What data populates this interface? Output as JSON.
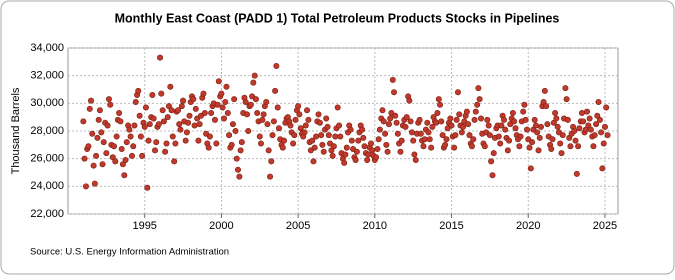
{
  "chart_data": {
    "type": "scatter",
    "title": "Monthly East Coast (PADD 1) Total Petroleum Products Stocks in Pipelines",
    "y_label": "Thousand Barrels",
    "source": "Source: U.S. Energy Information Administration",
    "color": "#c0392b",
    "grid": true,
    "xlim": [
      1990,
      2025.85
    ],
    "xticks": [
      1995,
      2000,
      2005,
      2010,
      2015,
      2020,
      2025
    ],
    "ylim": [
      22000,
      34000
    ],
    "yticks": [
      {
        "value": 22000,
        "label": "22,000"
      },
      {
        "value": 24000,
        "label": "24,000"
      },
      {
        "value": 26000,
        "label": "26,000"
      },
      {
        "value": 28000,
        "label": "28,000"
      },
      {
        "value": 30000,
        "label": "30,000"
      },
      {
        "value": 32000,
        "label": "32,000"
      },
      {
        "value": 34000,
        "label": "34,000"
      }
    ],
    "x": [
      1991,
      1991.08,
      1991.17,
      1991.25,
      1991.33,
      1991.42,
      1991.5,
      1991.58,
      1991.67,
      1991.75,
      1991.83,
      1991.92,
      1992,
      1992.08,
      1992.17,
      1992.25,
      1992.33,
      1992.42,
      1992.5,
      1992.58,
      1992.67,
      1992.75,
      1992.83,
      1992.92,
      1993,
      1993.08,
      1993.17,
      1993.25,
      1993.33,
      1993.42,
      1993.5,
      1993.58,
      1993.67,
      1993.75,
      1993.83,
      1993.92,
      1994,
      1994.08,
      1994.17,
      1994.25,
      1994.33,
      1994.42,
      1994.5,
      1994.58,
      1994.67,
      1994.75,
      1994.83,
      1994.92,
      1995,
      1995.08,
      1995.17,
      1995.25,
      1995.33,
      1995.42,
      1995.5,
      1995.58,
      1995.67,
      1995.75,
      1995.83,
      1995.92,
      1996,
      1996.08,
      1996.17,
      1996.25,
      1996.33,
      1996.42,
      1996.5,
      1996.58,
      1996.67,
      1996.75,
      1996.83,
      1996.92,
      1997,
      1997.08,
      1997.17,
      1997.25,
      1997.33,
      1997.42,
      1997.5,
      1997.58,
      1997.67,
      1997.75,
      1997.83,
      1997.92,
      1998,
      1998.08,
      1998.17,
      1998.25,
      1998.33,
      1998.42,
      1998.5,
      1998.58,
      1998.67,
      1998.75,
      1998.83,
      1998.92,
      1999,
      1999.08,
      1999.17,
      1999.25,
      1999.33,
      1999.42,
      1999.5,
      1999.58,
      1999.67,
      1999.75,
      1999.83,
      1999.92,
      2000,
      2000.08,
      2000.17,
      2000.25,
      2000.33,
      2000.42,
      2000.5,
      2000.58,
      2000.67,
      2000.75,
      2000.83,
      2000.92,
      2001,
      2001.08,
      2001.17,
      2001.25,
      2001.33,
      2001.42,
      2001.5,
      2001.58,
      2001.67,
      2001.75,
      2001.83,
      2001.92,
      2002,
      2002.08,
      2002.17,
      2002.25,
      2002.33,
      2002.42,
      2002.5,
      2002.58,
      2002.67,
      2002.75,
      2002.83,
      2002.92,
      2003,
      2003.08,
      2003.17,
      2003.25,
      2003.33,
      2003.42,
      2003.5,
      2003.58,
      2003.67,
      2003.75,
      2003.83,
      2003.92,
      2004,
      2004.08,
      2004.17,
      2004.25,
      2004.33,
      2004.42,
      2004.5,
      2004.58,
      2004.67,
      2004.75,
      2004.83,
      2004.92,
      2005,
      2005.08,
      2005.17,
      2005.25,
      2005.33,
      2005.42,
      2005.5,
      2005.58,
      2005.67,
      2005.75,
      2005.83,
      2005.92,
      2006,
      2006.08,
      2006.17,
      2006.25,
      2006.33,
      2006.42,
      2006.5,
      2006.58,
      2006.67,
      2006.75,
      2006.83,
      2006.92,
      2007,
      2007.08,
      2007.17,
      2007.25,
      2007.33,
      2007.42,
      2007.5,
      2007.58,
      2007.67,
      2007.75,
      2007.83,
      2007.92,
      2008,
      2008.08,
      2008.17,
      2008.25,
      2008.33,
      2008.42,
      2008.5,
      2008.58,
      2008.67,
      2008.75,
      2008.83,
      2008.92,
      2009,
      2009.08,
      2009.17,
      2009.25,
      2009.33,
      2009.42,
      2009.5,
      2009.58,
      2009.67,
      2009.75,
      2009.83,
      2009.92,
      2010,
      2010.08,
      2010.17,
      2010.25,
      2010.33,
      2010.42,
      2010.5,
      2010.58,
      2010.67,
      2010.75,
      2010.83,
      2010.92,
      2011,
      2011.08,
      2011.17,
      2011.25,
      2011.33,
      2011.42,
      2011.5,
      2011.58,
      2011.67,
      2011.75,
      2011.83,
      2011.92,
      2012,
      2012.08,
      2012.17,
      2012.25,
      2012.33,
      2012.42,
      2012.5,
      2012.58,
      2012.67,
      2012.75,
      2012.83,
      2012.92,
      2013,
      2013.08,
      2013.17,
      2013.25,
      2013.33,
      2013.42,
      2013.5,
      2013.58,
      2013.67,
      2013.75,
      2013.83,
      2013.92,
      2014,
      2014.08,
      2014.17,
      2014.25,
      2014.33,
      2014.42,
      2014.5,
      2014.58,
      2014.67,
      2014.75,
      2014.83,
      2014.92,
      2015,
      2015.08,
      2015.17,
      2015.25,
      2015.33,
      2015.42,
      2015.5,
      2015.58,
      2015.67,
      2015.75,
      2015.83,
      2015.92,
      2016,
      2016.08,
      2016.17,
      2016.25,
      2016.33,
      2016.42,
      2016.5,
      2016.58,
      2016.67,
      2016.75,
      2016.83,
      2016.92,
      2017,
      2017.08,
      2017.17,
      2017.25,
      2017.33,
      2017.42,
      2017.5,
      2017.58,
      2017.67,
      2017.75,
      2017.83,
      2017.92,
      2018,
      2018.08,
      2018.17,
      2018.25,
      2018.33,
      2018.42,
      2018.5,
      2018.58,
      2018.67,
      2018.75,
      2018.83,
      2018.92,
      2019,
      2019.08,
      2019.17,
      2019.25,
      2019.33,
      2019.42,
      2019.5,
      2019.58,
      2019.67,
      2019.75,
      2019.83,
      2019.92,
      2020,
      2020.08,
      2020.17,
      2020.25,
      2020.33,
      2020.42,
      2020.5,
      2020.58,
      2020.67,
      2020.75,
      2020.83,
      2020.92,
      2021,
      2021.08,
      2021.17,
      2021.25,
      2021.33,
      2021.42,
      2021.5,
      2021.58,
      2021.67,
      2021.75,
      2021.83,
      2021.92,
      2022,
      2022.08,
      2022.17,
      2022.25,
      2022.33,
      2022.42,
      2022.5,
      2022.58,
      2022.67,
      2022.75,
      2022.83,
      2022.92,
      2023,
      2023.08,
      2023.17,
      2023.25,
      2023.33,
      2023.42,
      2023.5,
      2023.58,
      2023.67,
      2023.75,
      2023.83,
      2023.92,
      2024,
      2024.08,
      2024.17,
      2024.25,
      2024.33,
      2024.42,
      2024.5,
      2024.58,
      2024.67,
      2024.75,
      2024.83,
      2024.92,
      2025,
      2025.08,
      2025.17
    ],
    "values": [
      28700,
      26000,
      24000,
      26700,
      26900,
      29600,
      30200,
      27800,
      25500,
      24200,
      26200,
      27500,
      28800,
      29500,
      27900,
      25600,
      27200,
      28600,
      26400,
      28400,
      30300,
      29900,
      27000,
      26100,
      26900,
      25800,
      27600,
      28800,
      29300,
      28700,
      26700,
      25600,
      24800,
      25900,
      27200,
      28400,
      28100,
      27600,
      26200,
      26900,
      28400,
      30100,
      30600,
      30900,
      29100,
      27600,
      26200,
      28600,
      28300,
      29700,
      23900,
      27300,
      28500,
      29000,
      30600,
      28900,
      26600,
      27200,
      28300,
      28500,
      33300,
      30700,
      29500,
      28700,
      26500,
      27100,
      29000,
      29800,
      31200,
      29500,
      27600,
      25800,
      27100,
      29400,
      29500,
      28500,
      28100,
      29800,
      30200,
      28700,
      27300,
      27900,
      28600,
      29100,
      30100,
      30500,
      30300,
      28400,
      29600,
      28900,
      27300,
      28500,
      29100,
      30400,
      30700,
      29300,
      27800,
      27100,
      26800,
      27600,
      29300,
      29800,
      30000,
      28800,
      27100,
      29900,
      31600,
      30500,
      30700,
      29700,
      28900,
      30100,
      31200,
      29300,
      27700,
      26800,
      27000,
      28500,
      30300,
      28000,
      26000,
      25200,
      24700,
      26600,
      27200,
      29300,
      30400,
      30100,
      29200,
      28000,
      29800,
      29900,
      30500,
      31500,
      32000,
      30300,
      29300,
      28700,
      27600,
      27100,
      28800,
      29200,
      29800,
      30100,
      28500,
      26600,
      24700,
      25800,
      27700,
      28700,
      30900,
      32700,
      29700,
      28200,
      27400,
      27000,
      26800,
      27300,
      28600,
      28900,
      29000,
      28700,
      28400,
      27900,
      27100,
      27700,
      28800,
      29500,
      29800,
      29200,
      28200,
      27800,
      27600,
      27900,
      28400,
      29500,
      28800,
      27200,
      26600,
      27300,
      25800,
      26800,
      27600,
      28700,
      29200,
      28600,
      27700,
      27000,
      26500,
      28100,
      28900,
      28300,
      27700,
      27100,
      26600,
      26200,
      26900,
      27600,
      28200,
      29700,
      28400,
      27600,
      26400,
      26000,
      25700,
      26300,
      26800,
      27900,
      28400,
      28100,
      27300,
      26700,
      26100,
      25900,
      26500,
      27300,
      27900,
      28400,
      28100,
      27500,
      26900,
      26400,
      25900,
      26300,
      26800,
      27100,
      26600,
      26200,
      25900,
      26100,
      26700,
      27400,
      28100,
      28900,
      29500,
      28700,
      27800,
      27000,
      26500,
      28500,
      28900,
      29300,
      31700,
      30800,
      29100,
      28600,
      27800,
      27100,
      26500,
      27300,
      28400,
      28800,
      28300,
      29000,
      30500,
      30200,
      28700,
      27900,
      27300,
      26300,
      25900,
      27800,
      28600,
      28800,
      27800,
      27300,
      26900,
      27400,
      28100,
      28600,
      27900,
      27400,
      26800,
      28300,
      29000,
      28700,
      28600,
      29300,
      30300,
      29900,
      28700,
      27700,
      26800,
      27000,
      27400,
      28200,
      28600,
      28900,
      28400,
      27600,
      26800,
      27700,
      28800,
      30800,
      29200,
      28400,
      27900,
      28300,
      28700,
      29100,
      29400,
      28500,
      27700,
      27100,
      26900,
      27400,
      28800,
      29400,
      29900,
      31100,
      30300,
      28900,
      27800,
      27100,
      26900,
      27900,
      28800,
      28400,
      27700,
      25800,
      24800,
      26400,
      27500,
      28200,
      28400,
      27600,
      27100,
      28400,
      29100,
      28800,
      28100,
      27500,
      26600,
      27300,
      28500,
      28900,
      29300,
      28700,
      28200,
      27700,
      27400,
      26900,
      27600,
      28700,
      29400,
      29900,
      28800,
      28100,
      27400,
      26800,
      25300,
      27200,
      28100,
      28800,
      28400,
      27900,
      26600,
      27500,
      28300,
      29800,
      30100,
      30900,
      29800,
      28500,
      27600,
      27000,
      26700,
      27400,
      28600,
      29300,
      28900,
      28300,
      27900,
      27100,
      26400,
      27700,
      28900,
      31100,
      30300,
      28800,
      27500,
      26900,
      27800,
      28300,
      28000,
      27300,
      24900,
      26900,
      28200,
      28700,
      29300,
      28700,
      27900,
      28100,
      29400,
      28400,
      28900,
      28100,
      27600,
      26900,
      27700,
      28500,
      29100,
      30100,
      28800,
      27900,
      25300,
      27100,
      28300,
      29700,
      27700
    ]
  }
}
